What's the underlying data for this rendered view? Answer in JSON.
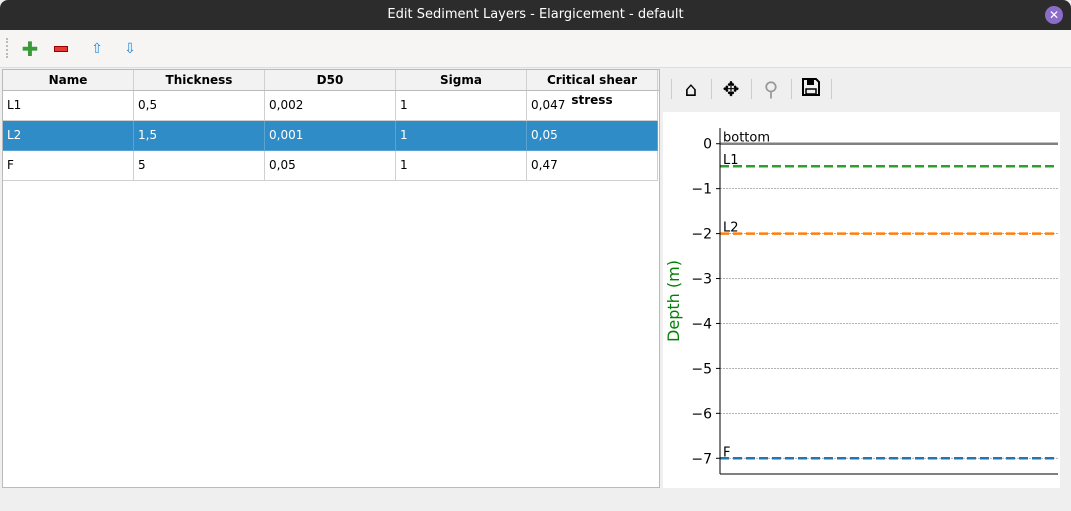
{
  "window": {
    "title": "Edit Sediment Layers - Elargicement - default",
    "close_icon": "close-icon"
  },
  "toolbar": {
    "add": "plus-icon",
    "remove": "minus-icon",
    "up": "arrow-up-icon",
    "down": "arrow-down-icon"
  },
  "table": {
    "headers": [
      "Name",
      "Thickness",
      "D50",
      "Sigma",
      "Critical shear stress"
    ],
    "rows": [
      [
        "L1",
        "0,5",
        "0,002",
        "1",
        "0,047"
      ],
      [
        "L2",
        "1,5",
        "0,001",
        "1",
        "0,05"
      ],
      [
        "F",
        "5",
        "0,05",
        "1",
        "0,47"
      ]
    ],
    "selected_row": 1,
    "selection_color": "#308cc6"
  },
  "plot_toolbar": {
    "home": "home-icon",
    "pan": "move-icon",
    "zoom": "zoom-icon",
    "save": "save-icon"
  },
  "chart_data": {
    "type": "line",
    "ylabel": "Depth (m)",
    "ylim": [
      -7.35,
      0.35
    ],
    "yticks": [
      "0",
      "−1",
      "−2",
      "−3",
      "−4",
      "−5",
      "−6",
      "−7"
    ],
    "ytick_values": [
      0,
      -1,
      -2,
      -3,
      -4,
      -5,
      -6,
      -7
    ],
    "grid": true,
    "lines": [
      {
        "name": "bottom",
        "y": 0,
        "color": "#808080",
        "style": "solid"
      },
      {
        "name": "L1",
        "y": -0.5,
        "color": "#2ca02c",
        "style": "dashed"
      },
      {
        "name": "L2",
        "y": -2,
        "color": "#ff7f0e",
        "style": "dashed"
      },
      {
        "name": "F",
        "y": -7,
        "color": "#1f77b4",
        "style": "dashed"
      }
    ]
  }
}
